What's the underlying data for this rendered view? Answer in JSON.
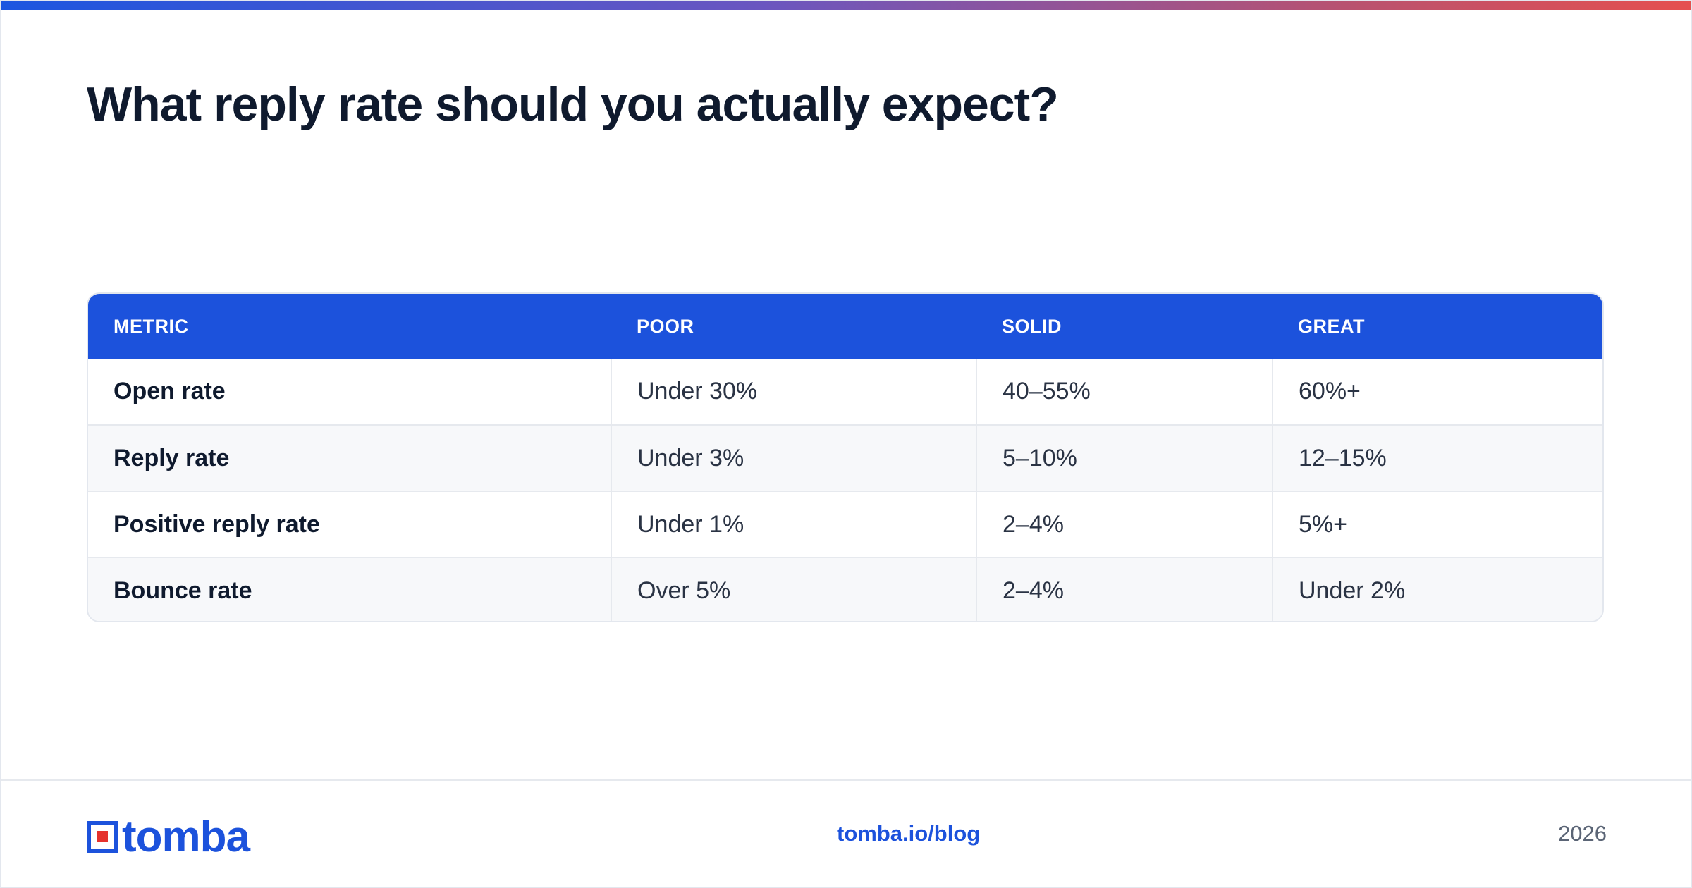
{
  "title": "What reply rate should you actually expect?",
  "table": {
    "headers": [
      "METRIC",
      "POOR",
      "SOLID",
      "GREAT"
    ],
    "rows": [
      [
        "Open rate",
        "Under 30%",
        "40–55%",
        "60%+"
      ],
      [
        "Reply rate",
        "Under 3%",
        "5–10%",
        "12–15%"
      ],
      [
        "Positive reply rate",
        "Under 1%",
        "2–4%",
        "5%+"
      ],
      [
        "Bounce rate",
        "Over 5%",
        "2–4%",
        "Under 2%"
      ]
    ]
  },
  "footer": {
    "brand": "tomba",
    "link": "tomba.io/blog",
    "year": "2026"
  },
  "colors": {
    "accent": "#1c52dc",
    "logo_red": "#e5322d",
    "title": "#0f1a2e"
  }
}
